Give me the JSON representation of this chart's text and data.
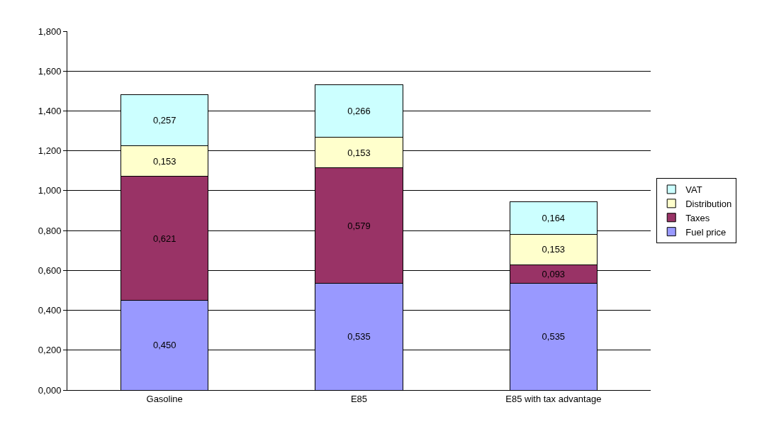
{
  "chart_data": {
    "type": "bar",
    "stacked": true,
    "categories": [
      "Gasoline",
      "E85",
      "E85 with tax advantage"
    ],
    "series": [
      {
        "name": "Fuel price",
        "color": "#9999ff",
        "values": [
          0.45,
          0.535,
          0.535
        ],
        "value_labels": [
          "0,450",
          "0,535",
          "0,535"
        ]
      },
      {
        "name": "Taxes",
        "color": "#993366",
        "values": [
          0.621,
          0.579,
          0.093
        ],
        "value_labels": [
          "0,621",
          "0,579",
          "0,093"
        ]
      },
      {
        "name": "Distribution",
        "color": "#ffffcc",
        "values": [
          0.153,
          0.153,
          0.153
        ],
        "value_labels": [
          "0,153",
          "0,153",
          "0,153"
        ]
      },
      {
        "name": "VAT",
        "color": "#ccffff",
        "values": [
          0.257,
          0.266,
          0.164
        ],
        "value_labels": [
          "0,257",
          "0,266",
          "0,164"
        ]
      }
    ],
    "ylim": [
      0,
      1.8
    ],
    "yticks": [
      {
        "value": 0,
        "label": "0,000"
      },
      {
        "value": 0.2,
        "label": "0,200"
      },
      {
        "value": 0.4,
        "label": "0,400"
      },
      {
        "value": 0.6,
        "label": "0,600"
      },
      {
        "value": 0.8,
        "label": "0,800"
      },
      {
        "value": 1.0,
        "label": "1,000"
      },
      {
        "value": 1.2,
        "label": "1,200"
      },
      {
        "value": 1.4,
        "label": "1,400"
      },
      {
        "value": 1.6,
        "label": "1,600"
      },
      {
        "value": 1.8,
        "label": "1,800"
      }
    ],
    "grid": "y",
    "legend": "right"
  }
}
